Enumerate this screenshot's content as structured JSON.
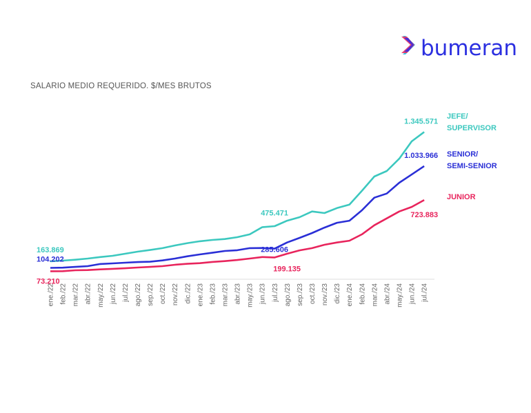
{
  "logo": {
    "text": "bumeran",
    "icon": "chevron-right-icon",
    "color": "#2b2fe0"
  },
  "chart_data": {
    "type": "line",
    "title": "SALARIO MEDIO REQUERIDO. $/MES BRUTOS",
    "xlabel": "",
    "ylabel": "",
    "grid": false,
    "legend_placement": "right",
    "categories": [
      "ene./22",
      "feb./22",
      "mar./22",
      "abr./22",
      "may./22",
      "jun./22",
      "jul./22",
      "ago./22",
      "sep./22",
      "oct./22",
      "nov./22",
      "dic./22",
      "ene./23",
      "feb./23",
      "mar./23",
      "abr./23",
      "may./23",
      "jun./23",
      "jul./23",
      "ago./23",
      "sep./23",
      "oct./23",
      "nov./23",
      "dic./23",
      "ene./24",
      "feb./24",
      "mar./24",
      "abr./24",
      "may./24",
      "jun./24",
      "jul./24"
    ],
    "series": [
      {
        "name": "JEFE/ SUPERVISOR",
        "name_lines": [
          "JEFE/",
          "SUPERVISOR"
        ],
        "color": "#3cc8bf",
        "values": [
          163869,
          170000,
          178000,
          189000,
          203000,
          214000,
          233000,
          252000,
          267000,
          284000,
          309000,
          330000,
          347000,
          359000,
          367000,
          384000,
          410000,
          475471,
          485000,
          535000,
          567000,
          619000,
          605000,
          650000,
          682000,
          808000,
          939000,
          989000,
          1102000,
          1260000,
          1345571
        ],
        "labels": [
          {
            "index": 0,
            "text": "163.869"
          },
          {
            "index": 17,
            "text": "475.471"
          },
          {
            "index": 30,
            "text": "1.345.571"
          }
        ]
      },
      {
        "name": "SENIOR/ SEMI-SENIOR",
        "name_lines": [
          "SENIOR/",
          "SEMI-SENIOR"
        ],
        "color": "#2a2fd6",
        "values": [
          104202,
          106000,
          113000,
          120000,
          139000,
          145000,
          151000,
          157000,
          160000,
          172000,
          189000,
          210000,
          227000,
          242000,
          258000,
          265000,
          284000,
          285606,
          280000,
          336000,
          378000,
          422000,
          472000,
          516000,
          535000,
          630000,
          745000,
          783000,
          882000,
          957000,
          1033966
        ],
        "labels": [
          {
            "index": 0,
            "text": "104.202"
          },
          {
            "index": 17,
            "text": "285.606"
          },
          {
            "index": 30,
            "text": "1.033.966"
          }
        ]
      },
      {
        "name": "JUNIOR",
        "name_lines": [
          "JUNIOR"
        ],
        "color": "#e8245c",
        "values": [
          73210,
          73500,
          82000,
          84000,
          90000,
          95000,
          100000,
          107000,
          113000,
          120000,
          132000,
          141000,
          147000,
          158000,
          166000,
          176000,
          189000,
          203000,
          199135,
          233000,
          264000,
          284000,
          315000,
          336000,
          352000,
          410000,
          493000,
          556000,
          619000,
          661000,
          723883
        ],
        "labels": [
          {
            "index": 0,
            "text": "73.210"
          },
          {
            "index": 18,
            "text": "199.135"
          },
          {
            "index": 30,
            "text": "723.883"
          }
        ]
      }
    ]
  }
}
